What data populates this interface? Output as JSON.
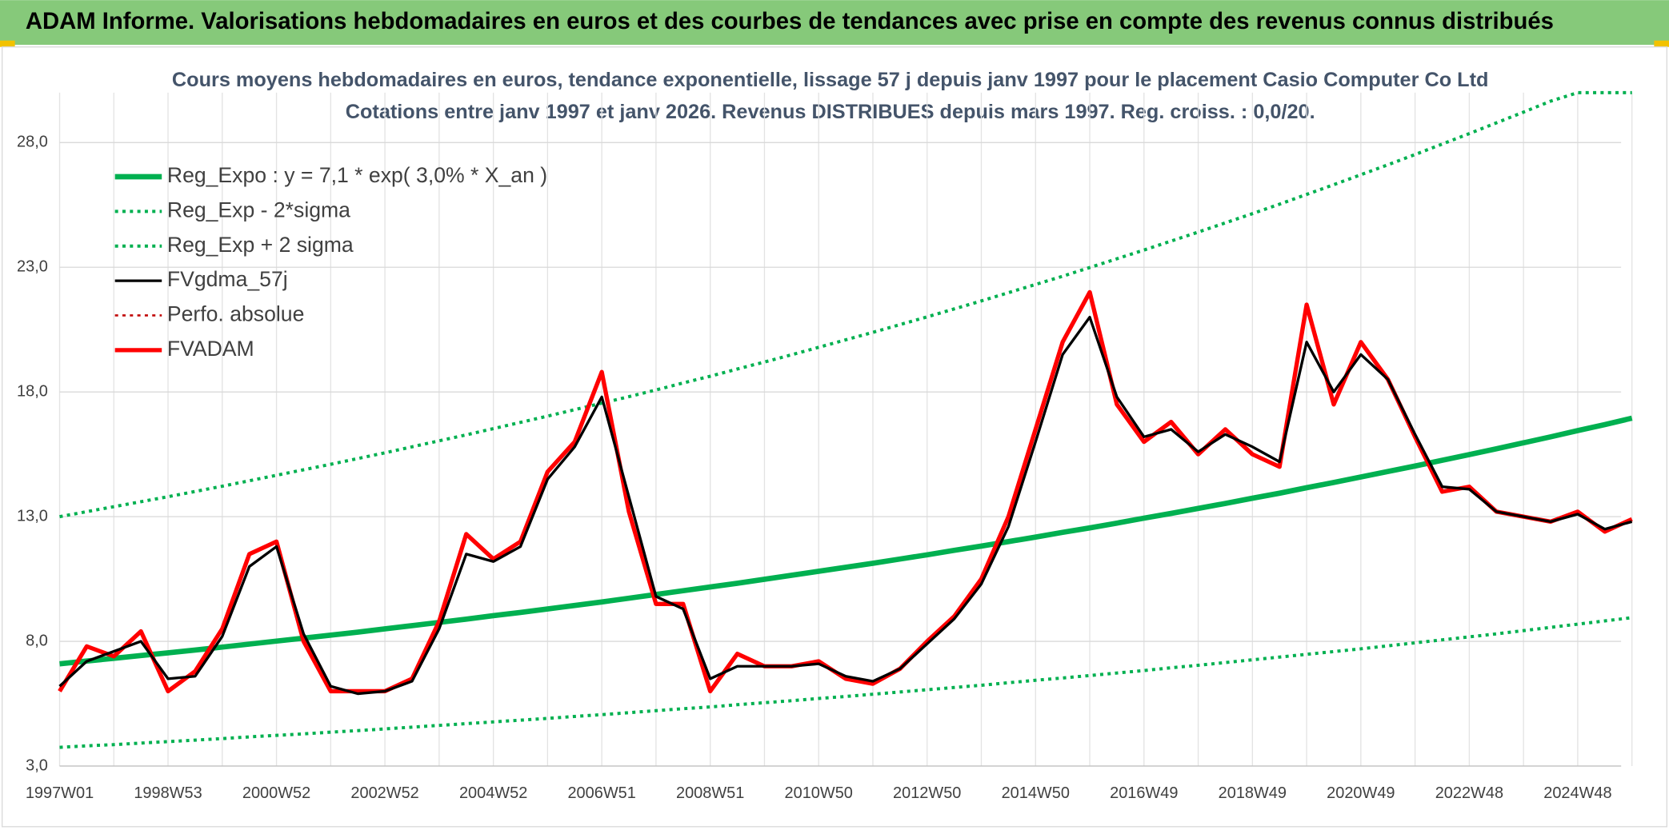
{
  "chart_data": {
    "type": "line",
    "title": "ADAM Informe. Valorisations hebdomadaires en euros et des courbes de tendances avec prise en compte des revenus connus distribués",
    "subtitle": [
      "Cours moyens hebdomadaires en euros, tendance exponentielle, lissage 57 j depuis janv 1997 pour le placement Casio Computer Co Ltd",
      "Cotations entre janv 1997 et janv 2026. Revenus DISTRIBUES depuis mars 1997. Reg. croiss. : 0,0/20."
    ],
    "categories": [
      "1997W01",
      null,
      null,
      null,
      "1998W53",
      null,
      null,
      null,
      "2000W52",
      null,
      null,
      null,
      "2002W52",
      null,
      null,
      null,
      "2004W52",
      null,
      null,
      null,
      "2006W51",
      null,
      null,
      null,
      "2008W51",
      null,
      null,
      null,
      "2010W50",
      null,
      null,
      null,
      "2012W50",
      null,
      null,
      null,
      "2014W50",
      null,
      null,
      null,
      "2016W49",
      null,
      null,
      null,
      "2018W49",
      null,
      null,
      null,
      "2020W49",
      null,
      null,
      null,
      "2022W48",
      null,
      null,
      null,
      "2024W48",
      null,
      null
    ],
    "ylim": [
      3,
      30
    ],
    "yticks": [
      {
        "value": 3,
        "label": "3,0"
      },
      {
        "value": 8,
        "label": "8,0"
      },
      {
        "value": 13,
        "label": "13,0"
      },
      {
        "value": 18,
        "label": "18,0"
      },
      {
        "value": 23,
        "label": "23,0"
      },
      {
        "value": 28,
        "label": "28,0"
      }
    ],
    "grid": true,
    "legend": "upper left",
    "series": [
      {
        "name": "Reg_Expo : y = 7,1 * exp( 3,0% *  X_an )",
        "color": "#00b050",
        "dash": false,
        "values": [
          7.1,
          7.21,
          7.32,
          7.43,
          7.54,
          7.65,
          7.77,
          7.89,
          8.01,
          8.13,
          8.25,
          8.37,
          8.5,
          8.63,
          8.76,
          8.89,
          9.03,
          9.16,
          9.3,
          9.44,
          9.58,
          9.73,
          9.88,
          10.03,
          10.18,
          10.33,
          10.49,
          10.65,
          10.81,
          10.97,
          11.13,
          11.3,
          11.47,
          11.65,
          11.82,
          12.0,
          12.18,
          12.37,
          12.55,
          12.74,
          12.94,
          13.13,
          13.33,
          13.53,
          13.74,
          13.94,
          14.16,
          14.37,
          14.59,
          14.81,
          15.03,
          15.26,
          15.49,
          15.72,
          15.96,
          16.2,
          16.45,
          16.69,
          16.95
        ]
      },
      {
        "name": "Reg_Exp - 2*sigma",
        "color": "#00b050",
        "dash": true,
        "values": [
          3.75,
          3.81,
          3.86,
          3.92,
          3.98,
          4.04,
          4.1,
          4.17,
          4.23,
          4.29,
          4.36,
          4.42,
          4.49,
          4.56,
          4.63,
          4.7,
          4.77,
          4.84,
          4.91,
          4.99,
          5.06,
          5.14,
          5.22,
          5.3,
          5.37,
          5.46,
          5.54,
          5.62,
          5.71,
          5.79,
          5.88,
          5.97,
          6.06,
          6.15,
          6.24,
          6.34,
          6.44,
          6.53,
          6.63,
          6.73,
          6.83,
          6.94,
          7.04,
          7.15,
          7.26,
          7.37,
          7.48,
          7.59,
          7.7,
          7.82,
          7.94,
          8.06,
          8.18,
          8.3,
          8.43,
          8.56,
          8.69,
          8.82,
          8.95
        ]
      },
      {
        "name": "Reg_Exp + 2 sigma",
        "color": "#00b050",
        "dash": true,
        "values": [
          13.0,
          13.2,
          13.4,
          13.6,
          13.8,
          14.01,
          14.22,
          14.44,
          14.66,
          14.88,
          15.1,
          15.33,
          15.56,
          15.8,
          16.04,
          16.28,
          16.53,
          16.78,
          17.03,
          17.29,
          17.55,
          17.81,
          18.08,
          18.36,
          18.63,
          18.92,
          19.2,
          19.49,
          19.79,
          20.09,
          20.39,
          20.7,
          21.01,
          21.33,
          21.65,
          21.98,
          22.31,
          22.64,
          22.99,
          23.34,
          23.69,
          24.05,
          24.41,
          24.78,
          25.15,
          25.53,
          25.92,
          26.31,
          26.71,
          27.11,
          27.52,
          27.94,
          28.36,
          28.79,
          29.22,
          29.66,
          30.0,
          30.0,
          30.0
        ]
      },
      {
        "name": "FVgdma_57j",
        "color": "#000000",
        "dash": false,
        "values": [
          6.2,
          7.2,
          7.6,
          8.0,
          6.5,
          6.6,
          8.2,
          11.0,
          11.8,
          8.3,
          6.2,
          5.9,
          6.0,
          6.4,
          8.5,
          11.5,
          11.2,
          11.8,
          14.5,
          15.8,
          17.8,
          13.8,
          9.8,
          9.3,
          6.5,
          7.0,
          7.0,
          7.0,
          7.1,
          6.6,
          6.4,
          6.9,
          7.9,
          8.9,
          10.3,
          12.6,
          16.0,
          19.5,
          21.0,
          17.8,
          16.2,
          16.5,
          15.6,
          16.3,
          15.8,
          15.2,
          20.0,
          18.0,
          19.5,
          18.5,
          16.3,
          14.2,
          14.1,
          13.2,
          13.0,
          12.8,
          13.1,
          12.5,
          12.8
        ]
      },
      {
        "name": "Perfo. absolue",
        "color": "#c00000",
        "dash": true,
        "values": [
          null,
          null,
          null,
          null,
          null,
          null,
          null,
          null,
          null,
          null,
          null,
          null,
          null,
          null,
          null,
          null,
          null,
          null,
          null,
          null,
          null,
          null,
          null,
          null,
          null,
          null,
          null,
          null,
          null,
          null,
          null,
          null,
          null,
          null,
          null,
          null,
          null,
          null,
          null,
          null,
          null,
          null,
          null,
          null,
          null,
          null,
          null,
          null,
          null,
          null,
          null,
          null,
          null,
          null,
          null,
          null,
          null,
          null,
          null
        ]
      },
      {
        "name": "FVADAM",
        "color": "#ff0000",
        "dash": false,
        "values": [
          6.0,
          7.8,
          7.4,
          8.4,
          6.0,
          6.8,
          8.5,
          11.5,
          12.0,
          8.0,
          6.0,
          6.0,
          6.0,
          6.5,
          8.8,
          12.3,
          11.3,
          12.0,
          14.8,
          16.0,
          18.8,
          13.2,
          9.5,
          9.5,
          6.0,
          7.5,
          7.0,
          7.0,
          7.2,
          6.5,
          6.3,
          6.9,
          8.0,
          9.0,
          10.5,
          13.0,
          16.5,
          20.0,
          22.0,
          17.5,
          16.0,
          16.8,
          15.5,
          16.5,
          15.5,
          15.0,
          21.5,
          17.5,
          20.0,
          18.5,
          16.2,
          14.0,
          14.2,
          13.2,
          13.0,
          12.8,
          13.2,
          12.4,
          12.9
        ]
      }
    ]
  }
}
